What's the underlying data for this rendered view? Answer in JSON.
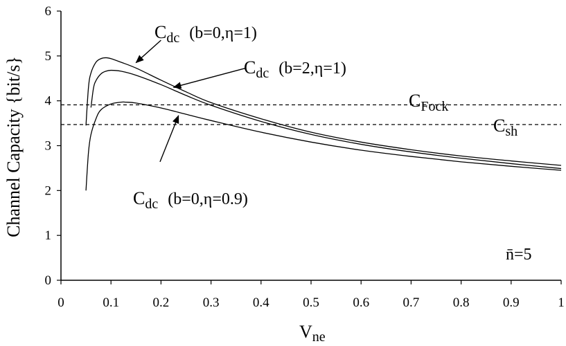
{
  "chart_data": {
    "type": "line",
    "xlabel": {
      "main": "V",
      "sub": "ne"
    },
    "ylabel": "Channel Capacity {bit/s}",
    "xlim": [
      0,
      1
    ],
    "ylim": [
      0,
      6
    ],
    "xticks": [
      0,
      0.1,
      0.2,
      0.3,
      0.4,
      0.5,
      0.6,
      0.7,
      0.8,
      0.9,
      1
    ],
    "xtick_labels": [
      "0",
      "0.1",
      "0.2",
      "0.3",
      "0.4",
      "0.5",
      "0.6",
      "0.7",
      "0.8",
      "0.9",
      "1"
    ],
    "yticks": [
      0,
      1,
      2,
      3,
      4,
      5,
      6
    ],
    "ytick_labels": [
      "0",
      "1",
      "2",
      "3",
      "4",
      "5",
      "6"
    ],
    "grid": false,
    "series": [
      {
        "name": "Cdc (b=0,η=1)",
        "style": "solid",
        "x": [
          0.05,
          0.055,
          0.06,
          0.07,
          0.08,
          0.09,
          0.1,
          0.12,
          0.15,
          0.2,
          0.25,
          0.3,
          0.4,
          0.5,
          0.6,
          0.7,
          0.8,
          0.9,
          1.0
        ],
        "y": [
          3.45,
          4.3,
          4.62,
          4.86,
          4.94,
          4.96,
          4.94,
          4.86,
          4.73,
          4.46,
          4.2,
          3.96,
          3.6,
          3.3,
          3.08,
          2.91,
          2.77,
          2.66,
          2.56
        ]
      },
      {
        "name": "Cdc (b=2,η=1)",
        "style": "solid",
        "x": [
          0.06,
          0.065,
          0.07,
          0.08,
          0.09,
          0.1,
          0.12,
          0.15,
          0.2,
          0.25,
          0.3,
          0.4,
          0.5,
          0.6,
          0.7,
          0.8,
          0.9,
          1.0
        ],
        "y": [
          3.85,
          4.28,
          4.45,
          4.6,
          4.66,
          4.68,
          4.66,
          4.57,
          4.36,
          4.12,
          3.9,
          3.54,
          3.25,
          3.03,
          2.86,
          2.72,
          2.6,
          2.49
        ]
      },
      {
        "name": "Cdc (b=0,η=0.9)",
        "style": "solid",
        "x": [
          0.05,
          0.055,
          0.06,
          0.07,
          0.08,
          0.1,
          0.12,
          0.13,
          0.15,
          0.2,
          0.25,
          0.3,
          0.4,
          0.5,
          0.6,
          0.7,
          0.8,
          0.9,
          1.0
        ],
        "y": [
          2.0,
          2.85,
          3.25,
          3.6,
          3.8,
          3.93,
          3.97,
          3.97,
          3.95,
          3.84,
          3.7,
          3.56,
          3.3,
          3.08,
          2.9,
          2.76,
          2.64,
          2.54,
          2.45
        ]
      },
      {
        "name": "CFock",
        "style": "dashed",
        "x": [
          0.0,
          1.0
        ],
        "y": [
          3.91,
          3.91
        ]
      },
      {
        "name": "Csh",
        "style": "dashed",
        "x": [
          0.0,
          1.0
        ],
        "y": [
          3.47,
          3.47
        ]
      }
    ],
    "annotations": [
      {
        "id": "a1",
        "main": "C",
        "sub": "dc",
        "params": "(b=0,η=1)",
        "arrow_to": [
          0.15,
          4.85
        ],
        "arrow_from": [
          0.2,
          5.35
        ]
      },
      {
        "id": "a2",
        "main": "C",
        "sub": "dc",
        "params": "(b=2,η=1)",
        "arrow_to": [
          0.225,
          4.3
        ],
        "arrow_from": [
          0.37,
          4.73
        ]
      },
      {
        "id": "a3",
        "main": "C",
        "sub": "dc",
        "params": "(b=0,η=0.9)",
        "arrow_to": [
          0.235,
          3.67
        ],
        "arrow_from": [
          0.198,
          2.64
        ]
      },
      {
        "id": "a4",
        "main": "C",
        "sub": "Fock",
        "params": ""
      },
      {
        "id": "a5",
        "main": "C",
        "sub": "sh",
        "params": ""
      },
      {
        "id": "a6",
        "main": "n̄=5",
        "sub": "",
        "params": ""
      }
    ]
  }
}
